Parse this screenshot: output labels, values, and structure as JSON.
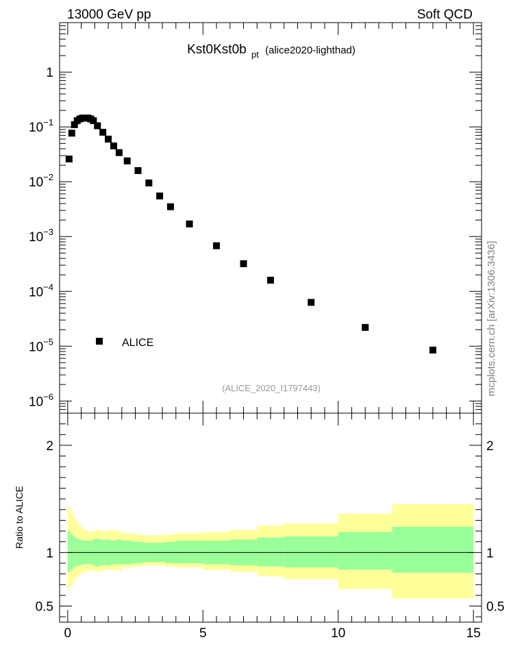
{
  "header": {
    "left": "13000 GeV pp",
    "right": "Soft QCD",
    "side_label": "mcplots.cern.ch [arXiv:1306.3436]"
  },
  "chart_data": {
    "type": "scatter",
    "title_main": "Kst0Kst0b",
    "title_sub": "pt",
    "title_note": "(alice2020-lighthad)",
    "analysis_label": "(ALICE_2020_I1797443)",
    "legend": {
      "label": "ALICE",
      "placement": "left-bottom"
    },
    "x_range": [
      -0.3,
      15.3
    ],
    "x_ticks": [
      "0",
      "5",
      "10",
      "15"
    ],
    "upper": {
      "y_scale": "log",
      "y_range": [
        6e-07,
        8
      ],
      "y_tick_labels": [
        {
          "value": 1,
          "base": "1",
          "exp": ""
        },
        {
          "value": 0.1,
          "base": "10",
          "exp": "−1"
        },
        {
          "value": 0.01,
          "base": "10",
          "exp": "−2"
        },
        {
          "value": 0.001,
          "base": "10",
          "exp": "−3"
        },
        {
          "value": 0.0001,
          "base": "10",
          "exp": "−4"
        },
        {
          "value": 1e-05,
          "base": "10",
          "exp": "−5"
        },
        {
          "value": 1e-06,
          "base": "10",
          "exp": "−6"
        }
      ],
      "series": [
        {
          "name": "ALICE",
          "points": [
            [
              0.05,
              0.026
            ],
            [
              0.15,
              0.077
            ],
            [
              0.25,
              0.11
            ],
            [
              0.35,
              0.13
            ],
            [
              0.45,
              0.14
            ],
            [
              0.55,
              0.145
            ],
            [
              0.65,
              0.145
            ],
            [
              0.75,
              0.145
            ],
            [
              0.85,
              0.14
            ],
            [
              0.95,
              0.13
            ],
            [
              1.1,
              0.105
            ],
            [
              1.3,
              0.08
            ],
            [
              1.5,
              0.06
            ],
            [
              1.7,
              0.045
            ],
            [
              1.9,
              0.034
            ],
            [
              2.2,
              0.024
            ],
            [
              2.6,
              0.016
            ],
            [
              3.0,
              0.0095
            ],
            [
              3.4,
              0.0055
            ],
            [
              3.8,
              0.0035
            ],
            [
              4.5,
              0.0017
            ],
            [
              5.5,
              0.00068
            ],
            [
              6.5,
              0.00032
            ],
            [
              7.5,
              0.00016
            ],
            [
              9.0,
              6.3e-05
            ],
            [
              11.0,
              2.2e-05
            ],
            [
              13.5,
              8.5e-06
            ]
          ]
        }
      ]
    },
    "ratio": {
      "ylabel": "Ratio to ALICE",
      "y_range": [
        0.35,
        2.3
      ],
      "y_ticks": [
        "0.5",
        "1",
        "2"
      ],
      "reference_line": 1,
      "bands": [
        {
          "x0": 0.0,
          "x1": 0.1,
          "inner": [
            0.82,
            1.2
          ],
          "outer": [
            0.66,
            1.43
          ]
        },
        {
          "x0": 0.1,
          "x1": 0.2,
          "inner": [
            0.84,
            1.17
          ],
          "outer": [
            0.7,
            1.38
          ]
        },
        {
          "x0": 0.2,
          "x1": 0.3,
          "inner": [
            0.86,
            1.15
          ],
          "outer": [
            0.74,
            1.33
          ]
        },
        {
          "x0": 0.3,
          "x1": 0.4,
          "inner": [
            0.87,
            1.13
          ],
          "outer": [
            0.77,
            1.29
          ]
        },
        {
          "x0": 0.4,
          "x1": 0.5,
          "inner": [
            0.88,
            1.12
          ],
          "outer": [
            0.79,
            1.26
          ]
        },
        {
          "x0": 0.5,
          "x1": 0.6,
          "inner": [
            0.89,
            1.11
          ],
          "outer": [
            0.81,
            1.23
          ]
        },
        {
          "x0": 0.6,
          "x1": 0.7,
          "inner": [
            0.89,
            1.11
          ],
          "outer": [
            0.82,
            1.21
          ]
        },
        {
          "x0": 0.7,
          "x1": 0.8,
          "inner": [
            0.89,
            1.11
          ],
          "outer": [
            0.83,
            1.2
          ]
        },
        {
          "x0": 0.8,
          "x1": 0.9,
          "inner": [
            0.89,
            1.11
          ],
          "outer": [
            0.84,
            1.19
          ]
        },
        {
          "x0": 0.9,
          "x1": 1.0,
          "inner": [
            0.88,
            1.12
          ],
          "outer": [
            0.83,
            1.2
          ]
        },
        {
          "x0": 1.0,
          "x1": 1.2,
          "inner": [
            0.87,
            1.13
          ],
          "outer": [
            0.82,
            1.21
          ]
        },
        {
          "x0": 1.2,
          "x1": 1.4,
          "inner": [
            0.88,
            1.12
          ],
          "outer": [
            0.83,
            1.2
          ]
        },
        {
          "x0": 1.4,
          "x1": 1.6,
          "inner": [
            0.88,
            1.12
          ],
          "outer": [
            0.84,
            1.2
          ]
        },
        {
          "x0": 1.6,
          "x1": 1.8,
          "inner": [
            0.89,
            1.11
          ],
          "outer": [
            0.84,
            1.21
          ]
        },
        {
          "x0": 1.8,
          "x1": 2.0,
          "inner": [
            0.89,
            1.12
          ],
          "outer": [
            0.83,
            1.2
          ]
        },
        {
          "x0": 2.0,
          "x1": 2.4,
          "inner": [
            0.89,
            1.11
          ],
          "outer": [
            0.86,
            1.18
          ]
        },
        {
          "x0": 2.4,
          "x1": 2.8,
          "inner": [
            0.9,
            1.1
          ],
          "outer": [
            0.87,
            1.17
          ]
        },
        {
          "x0": 2.8,
          "x1": 3.2,
          "inner": [
            0.91,
            1.09
          ],
          "outer": [
            0.88,
            1.16
          ]
        },
        {
          "x0": 3.2,
          "x1": 3.6,
          "inner": [
            0.91,
            1.09
          ],
          "outer": [
            0.88,
            1.16
          ]
        },
        {
          "x0": 3.6,
          "x1": 4.0,
          "inner": [
            0.9,
            1.1
          ],
          "outer": [
            0.87,
            1.17
          ]
        },
        {
          "x0": 4.0,
          "x1": 5.0,
          "inner": [
            0.9,
            1.11
          ],
          "outer": [
            0.86,
            1.18
          ]
        },
        {
          "x0": 5.0,
          "x1": 6.0,
          "inner": [
            0.89,
            1.11
          ],
          "outer": [
            0.84,
            1.19
          ]
        },
        {
          "x0": 6.0,
          "x1": 7.0,
          "inner": [
            0.88,
            1.12
          ],
          "outer": [
            0.82,
            1.21
          ]
        },
        {
          "x0": 7.0,
          "x1": 8.0,
          "inner": [
            0.87,
            1.14
          ],
          "outer": [
            0.78,
            1.25
          ]
        },
        {
          "x0": 8.0,
          "x1": 10.0,
          "inner": [
            0.86,
            1.15
          ],
          "outer": [
            0.75,
            1.27
          ]
        },
        {
          "x0": 10.0,
          "x1": 12.0,
          "inner": [
            0.84,
            1.19
          ],
          "outer": [
            0.66,
            1.36
          ]
        },
        {
          "x0": 12.0,
          "x1": 15.0,
          "inner": [
            0.81,
            1.24
          ],
          "outer": [
            0.57,
            1.45
          ]
        }
      ]
    },
    "colors": {
      "inner_band": "#99ff99",
      "outer_band": "#ffff99",
      "marker": "#000000",
      "analysis_label": "#999999",
      "side_label": "#808080"
    }
  }
}
